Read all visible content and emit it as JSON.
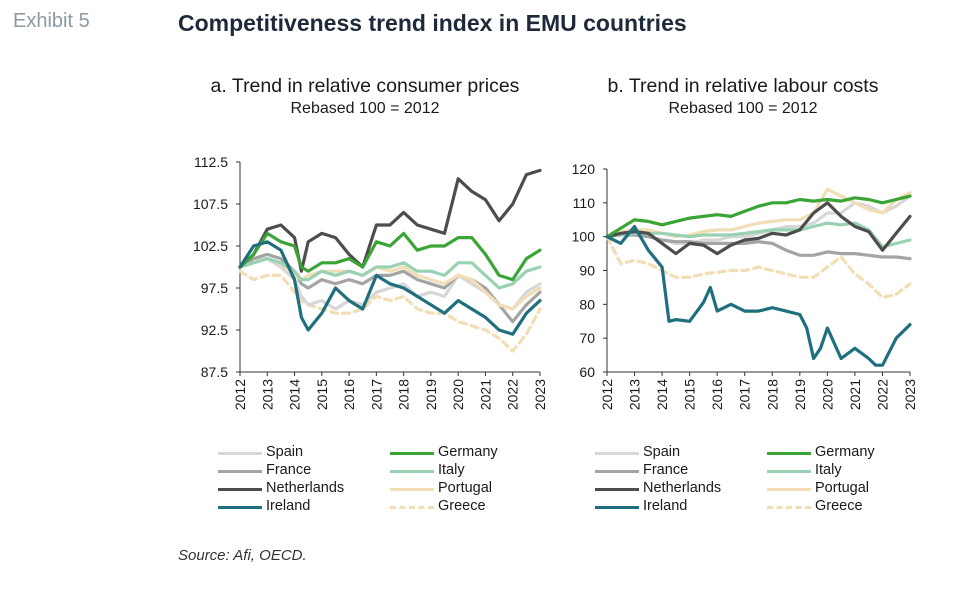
{
  "header": {
    "exhibit_label": "Exhibit 5",
    "title": "Competitiveness trend index in EMU countries"
  },
  "source": "Source: Afi, OECD.",
  "colors": {
    "Spain": "#d7d7d7",
    "Germany": "#3aa535",
    "France": "#a4a4a4",
    "Italy": "#98d2b3",
    "Netherlands": "#4d4d4d",
    "Portugal": "#f2deb5",
    "Ireland": "#1f6f7f",
    "Greece": "#f2deb5"
  },
  "legend": [
    {
      "name": "Spain",
      "style": "solid"
    },
    {
      "name": "Germany",
      "style": "solid"
    },
    {
      "name": "France",
      "style": "solid"
    },
    {
      "name": "Italy",
      "style": "solid"
    },
    {
      "name": "Netherlands",
      "style": "solid"
    },
    {
      "name": "Portugal",
      "style": "solid"
    },
    {
      "name": "Ireland",
      "style": "solid"
    },
    {
      "name": "Greece",
      "style": "dashed"
    }
  ],
  "chart_data": [
    {
      "type": "line",
      "title": "a. Trend in relative consumer prices",
      "subtitle": "Rebased 100 = 2012",
      "xlim": [
        2012,
        2023
      ],
      "ylim": [
        87.5,
        112.5
      ],
      "yticks": [
        "87.5",
        "92.5",
        "97.5",
        "102.5",
        "107.5",
        "112.5"
      ],
      "xticks": [
        "2012",
        "2013",
        "2014",
        "2015",
        "2016",
        "2017",
        "2018",
        "2019",
        "2020",
        "2021",
        "2022",
        "2023"
      ],
      "grid": false,
      "legend_position": "bottom",
      "series": [
        {
          "name": "Spain",
          "x": [
            2012,
            2012.5,
            2013,
            2013.5,
            2014,
            2014.25,
            2014.5,
            2015,
            2015.5,
            2016,
            2016.5,
            2017,
            2017.5,
            2018,
            2018.5,
            2019,
            2019.5,
            2020,
            2020.5,
            2021,
            2021.5,
            2022,
            2022.5,
            2023
          ],
          "values": [
            100,
            101,
            101,
            100,
            98.5,
            96.5,
            95.5,
            96,
            95,
            96,
            95.5,
            97,
            97.5,
            98,
            96.5,
            97,
            96.5,
            99,
            98,
            97,
            95.5,
            95,
            97,
            98
          ]
        },
        {
          "name": "Germany",
          "x": [
            2012,
            2012.5,
            2013,
            2013.5,
            2014,
            2014.25,
            2014.5,
            2015,
            2015.5,
            2016,
            2016.5,
            2017,
            2017.5,
            2018,
            2018.5,
            2019,
            2019.5,
            2020,
            2020.5,
            2021,
            2021.5,
            2022,
            2022.5,
            2023
          ],
          "values": [
            100,
            101.5,
            104,
            103,
            102.5,
            100,
            99.5,
            100.5,
            100.5,
            101,
            100,
            103,
            102.5,
            104,
            102,
            102.5,
            102.5,
            103.5,
            103.5,
            101.5,
            99,
            98.5,
            101,
            102
          ]
        },
        {
          "name": "France",
          "x": [
            2012,
            2012.5,
            2013,
            2013.5,
            2014,
            2014.25,
            2014.5,
            2015,
            2015.5,
            2016,
            2016.5,
            2017,
            2017.5,
            2018,
            2018.5,
            2019,
            2019.5,
            2020,
            2020.5,
            2021,
            2021.5,
            2022,
            2022.5,
            2023
          ],
          "values": [
            100,
            101,
            101.5,
            101,
            99.5,
            98,
            97.5,
            98.5,
            98,
            98.5,
            98,
            99,
            99,
            99.5,
            98.5,
            98,
            97.5,
            99,
            98.5,
            97.5,
            95.5,
            93.5,
            95.5,
            97
          ]
        },
        {
          "name": "Italy",
          "x": [
            2012,
            2012.5,
            2013,
            2013.5,
            2014,
            2014.25,
            2014.5,
            2015,
            2015.5,
            2016,
            2016.5,
            2017,
            2017.5,
            2018,
            2018.5,
            2019,
            2019.5,
            2020,
            2020.5,
            2021,
            2021.5,
            2022,
            2022.5,
            2023
          ],
          "values": [
            100,
            100.5,
            101,
            100.5,
            99.5,
            98.5,
            98.5,
            99.5,
            99,
            99.5,
            99,
            100,
            100,
            100.5,
            99.5,
            99.5,
            99,
            100.5,
            100.5,
            99,
            97.5,
            98,
            99.5,
            100
          ]
        },
        {
          "name": "Netherlands",
          "x": [
            2012,
            2012.5,
            2013,
            2013.5,
            2014,
            2014.25,
            2014.5,
            2015,
            2015.5,
            2016,
            2016.5,
            2017,
            2017.5,
            2018,
            2018.5,
            2019,
            2019.5,
            2020,
            2020.5,
            2021,
            2021.5,
            2022,
            2022.5,
            2023
          ],
          "values": [
            100,
            101.5,
            104.5,
            105,
            103.5,
            99.5,
            103,
            104,
            103.5,
            101.5,
            100,
            105,
            105,
            106.5,
            105,
            104.5,
            104,
            110.5,
            109,
            108,
            105.5,
            107.5,
            111,
            111.5
          ]
        },
        {
          "name": "Portugal",
          "x": [
            2012,
            2012.5,
            2013,
            2013.5,
            2014,
            2014.25,
            2014.5,
            2015,
            2015.5,
            2016,
            2016.5,
            2017,
            2017.5,
            2018,
            2018.5,
            2019,
            2019.5,
            2020,
            2020.5,
            2021,
            2021.5,
            2022,
            2022.5,
            2023
          ],
          "values": [
            100,
            100.5,
            101,
            100.5,
            99,
            98.5,
            99,
            99.5,
            99.5,
            99.5,
            99,
            100,
            99.5,
            100,
            99,
            98.5,
            98,
            99,
            98.5,
            97,
            95.5,
            95,
            96.5,
            97.5
          ]
        },
        {
          "name": "Ireland",
          "x": [
            2012,
            2012.5,
            2013,
            2013.5,
            2014,
            2014.25,
            2014.5,
            2015,
            2015.5,
            2016,
            2016.5,
            2017,
            2017.5,
            2018,
            2018.5,
            2019,
            2019.5,
            2020,
            2020.5,
            2021,
            2021.5,
            2022,
            2022.5,
            2023
          ],
          "values": [
            100,
            102.5,
            103,
            102,
            98.5,
            94,
            92.5,
            94.5,
            97.5,
            96,
            95,
            99,
            98,
            97.5,
            96.5,
            95.5,
            94.5,
            96,
            95,
            94,
            92.5,
            92,
            94.5,
            96
          ]
        },
        {
          "name": "Greece",
          "x": [
            2012,
            2012.5,
            2013,
            2013.5,
            2014,
            2014.25,
            2014.5,
            2015,
            2015.5,
            2016,
            2016.5,
            2017,
            2017.5,
            2018,
            2018.5,
            2019,
            2019.5,
            2020,
            2020.5,
            2021,
            2021.5,
            2022,
            2022.5,
            2023
          ],
          "values": [
            99.5,
            98.5,
            99,
            99,
            97,
            96,
            95.5,
            95,
            94.5,
            94.5,
            95,
            96.5,
            96,
            96.5,
            95,
            94.5,
            94.5,
            93.5,
            93,
            92.5,
            91.5,
            90,
            92,
            95
          ]
        }
      ]
    },
    {
      "type": "line",
      "title": "b. Trend in relative labour costs",
      "subtitle": "Rebased 100 = 2012",
      "xlim": [
        2012,
        2023
      ],
      "ylim": [
        60,
        120
      ],
      "yticks": [
        "60",
        "70",
        "80",
        "90",
        "100",
        "110",
        "120"
      ],
      "xticks": [
        "2012",
        "2013",
        "2014",
        "2015",
        "2016",
        "2017",
        "2018",
        "2019",
        "2020",
        "2021",
        "2022",
        "2023"
      ],
      "grid": false,
      "legend_position": "bottom",
      "series": [
        {
          "name": "Spain",
          "x": [
            2012,
            2012.5,
            2013,
            2013.5,
            2014,
            2014.5,
            2015,
            2015.5,
            2016,
            2016.5,
            2017,
            2017.5,
            2018,
            2018.5,
            2019,
            2019.5,
            2020,
            2020.5,
            2021,
            2021.5,
            2022,
            2022.5,
            2023
          ],
          "values": [
            100,
            101,
            102,
            100,
            99,
            98,
            98,
            99,
            99,
            100,
            100,
            101,
            102,
            103,
            103,
            104,
            107,
            107,
            110,
            109,
            107,
            109,
            112
          ]
        },
        {
          "name": "Germany",
          "x": [
            2012,
            2012.5,
            2013,
            2013.5,
            2014,
            2014.5,
            2015,
            2015.5,
            2016,
            2016.5,
            2017,
            2017.5,
            2018,
            2018.5,
            2019,
            2019.5,
            2020,
            2020.5,
            2021,
            2021.5,
            2022,
            2022.5,
            2023
          ],
          "values": [
            100,
            102.5,
            105,
            104.5,
            103.5,
            104.5,
            105.5,
            106,
            106.5,
            106,
            107.5,
            109,
            110,
            110,
            111,
            110.5,
            111,
            110.5,
            111.5,
            111,
            110,
            111,
            112
          ]
        },
        {
          "name": "France",
          "x": [
            2012,
            2012.5,
            2013,
            2013.5,
            2014,
            2014.5,
            2015,
            2015.5,
            2016,
            2016.5,
            2017,
            2017.5,
            2018,
            2018.5,
            2019,
            2019.5,
            2020,
            2020.5,
            2021,
            2021.5,
            2022,
            2022.5,
            2023
          ],
          "values": [
            100,
            100.5,
            100.5,
            100,
            99,
            98.5,
            98.5,
            98,
            98,
            98,
            98,
            98.5,
            98,
            96,
            94.5,
            94.5,
            95.5,
            95,
            95,
            94.5,
            94,
            94,
            93.5
          ]
        },
        {
          "name": "Italy",
          "x": [
            2012,
            2012.5,
            2013,
            2013.5,
            2014,
            2014.5,
            2015,
            2015.5,
            2016,
            2016.5,
            2017,
            2017.5,
            2018,
            2018.5,
            2019,
            2019.5,
            2020,
            2020.5,
            2021,
            2021.5,
            2022,
            2022.5,
            2023
          ],
          "values": [
            100,
            100.5,
            101,
            101,
            101,
            100.5,
            100,
            100.5,
            100.5,
            100.5,
            101,
            101.5,
            102,
            102,
            102,
            103,
            104,
            103.5,
            104,
            102,
            97,
            98,
            99
          ]
        },
        {
          "name": "Netherlands",
          "x": [
            2012,
            2012.5,
            2013,
            2013.5,
            2014,
            2014.5,
            2015,
            2015.5,
            2016,
            2016.5,
            2017,
            2017.5,
            2018,
            2018.5,
            2019,
            2019.5,
            2020,
            2020.5,
            2021,
            2021.5,
            2022,
            2022.5,
            2023
          ],
          "values": [
            100,
            101,
            101.5,
            101,
            98,
            95,
            98,
            97.5,
            95,
            97.5,
            99,
            99.5,
            101,
            100.5,
            102,
            107,
            110,
            106,
            103,
            101.5,
            96,
            101,
            106
          ]
        },
        {
          "name": "Portugal",
          "x": [
            2012,
            2012.5,
            2013,
            2013.5,
            2014,
            2014.5,
            2015,
            2015.5,
            2016,
            2016.5,
            2017,
            2017.5,
            2018,
            2018.5,
            2019,
            2019.5,
            2020,
            2020.5,
            2021,
            2021.5,
            2022,
            2022.5,
            2023
          ],
          "values": [
            100,
            101.5,
            102,
            102,
            101,
            100,
            100.5,
            101.5,
            102,
            102,
            103,
            104,
            104.5,
            105,
            105,
            107,
            114,
            112,
            110,
            108,
            107,
            111,
            113
          ]
        },
        {
          "name": "Ireland",
          "x": [
            2012,
            2012.5,
            2013,
            2013.5,
            2014,
            2014.25,
            2014.5,
            2015,
            2015.5,
            2015.75,
            2016,
            2016.5,
            2017,
            2017.5,
            2018,
            2018.5,
            2019,
            2019.25,
            2019.5,
            2019.75,
            2020,
            2020.5,
            2021,
            2021.5,
            2021.75,
            2022,
            2022.5,
            2023
          ],
          "values": [
            100,
            98,
            103,
            96,
            91,
            75,
            75.5,
            75,
            80.5,
            85,
            78,
            80,
            78,
            78,
            79,
            78,
            77,
            73,
            64,
            67,
            73,
            64,
            67,
            64,
            62,
            62,
            70,
            74
          ]
        },
        {
          "name": "Greece",
          "x": [
            2012,
            2012.5,
            2013,
            2013.5,
            2014,
            2014.5,
            2015,
            2015.5,
            2016,
            2016.5,
            2017,
            2017.5,
            2018,
            2018.5,
            2019,
            2019.5,
            2020,
            2020.5,
            2021,
            2021.5,
            2022,
            2022.5,
            2023
          ],
          "values": [
            100,
            92,
            93,
            92,
            90,
            88,
            88,
            89,
            89.5,
            90,
            90,
            91,
            90,
            89,
            88,
            88,
            91,
            94,
            89,
            86,
            82,
            83,
            86
          ]
        }
      ]
    }
  ]
}
